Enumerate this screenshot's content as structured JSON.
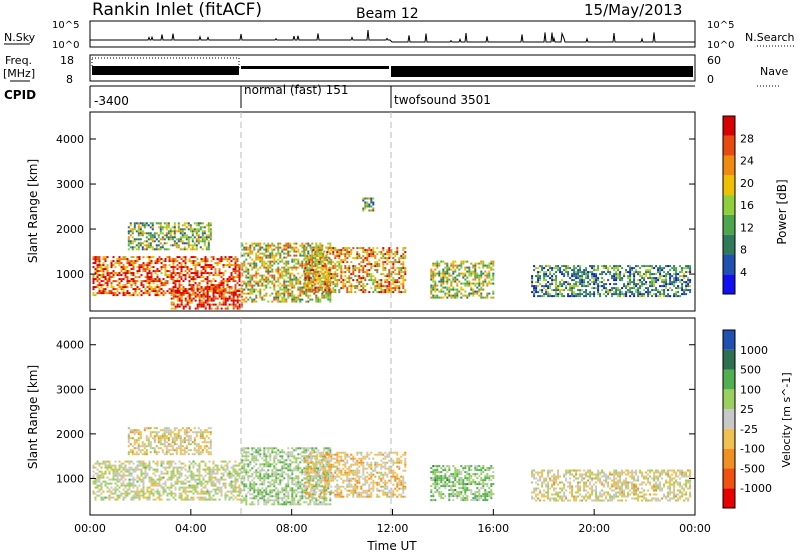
{
  "header": {
    "station": "Rankin Inlet (fitACF)",
    "beam": "Beam 12",
    "date": "15/May/2013"
  },
  "noise_panel": {
    "left_label": "N.Sky",
    "left_ticks": [
      "10^5",
      "10^0"
    ],
    "right_label": "N.Search",
    "right_ticks": [
      "10^5",
      "10^0"
    ]
  },
  "freq_panel": {
    "left_label_1": "Freq.",
    "left_label_2": "[MHz]",
    "left_ticks": [
      "18",
      "8"
    ],
    "right_label": "Nave",
    "right_ticks": [
      "60",
      "0"
    ]
  },
  "cpid_panel": {
    "label": "CPID",
    "segments": [
      {
        "start_hr": 0,
        "text": "-3400"
      },
      {
        "start_hr": 6,
        "text": "normal (fast) 151"
      },
      {
        "start_hr": 12,
        "text": "twofsound 3501"
      }
    ]
  },
  "colors": {
    "power": [
      "#1010f0",
      "#2050b0",
      "#2e7a5a",
      "#4ca64c",
      "#8ecf3a",
      "#f0c000",
      "#f08a10",
      "#e84a10",
      "#d80000"
    ],
    "velocity": [
      "#e80000",
      "#f05010",
      "#f09020",
      "#f0c050",
      "#c8c8c8",
      "#9ad060",
      "#50b050",
      "#2e7050",
      "#2050b0"
    ]
  },
  "chart_data": [
    {
      "type": "heatmap",
      "title": "",
      "xlabel": "",
      "ylabel": "Slant Range [km]",
      "xlim": [
        0,
        24
      ],
      "ylim": [
        180,
        4600
      ],
      "yticks": [
        1000,
        2000,
        3000,
        4000
      ],
      "colorbar": {
        "label": "Power [dB]",
        "ticks": [
          "4",
          "8",
          "12",
          "16",
          "20",
          "24",
          "28"
        ],
        "range": [
          0,
          32
        ]
      },
      "vertical_markers_hr": [
        6,
        12
      ],
      "regions": [
        {
          "t0": 0.1,
          "t1": 5.9,
          "r0": 520,
          "r1": 1400,
          "value": 26
        },
        {
          "t0": 1.5,
          "t1": 4.8,
          "r0": 1550,
          "r1": 2150,
          "value": 14
        },
        {
          "t0": 3.2,
          "t1": 6.0,
          "r0": 250,
          "r1": 700,
          "value": 29
        },
        {
          "t0": 6.0,
          "t1": 9.5,
          "r0": 400,
          "r1": 1700,
          "value": 18
        },
        {
          "t0": 8.5,
          "t1": 12.5,
          "r0": 600,
          "r1": 1600,
          "value": 22
        },
        {
          "t0": 10.8,
          "t1": 11.2,
          "r0": 2400,
          "r1": 2700,
          "value": 14
        },
        {
          "t0": 13.5,
          "t1": 16.0,
          "r0": 500,
          "r1": 1300,
          "value": 16
        },
        {
          "t0": 17.5,
          "t1": 23.8,
          "r0": 500,
          "r1": 1200,
          "value": 10
        }
      ]
    },
    {
      "type": "heatmap",
      "title": "",
      "xlabel": "Time UT",
      "ylabel": "Slant Range [km]",
      "xlim": [
        0,
        24
      ],
      "ylim": [
        180,
        4600
      ],
      "xticks": [
        "00:00",
        "04:00",
        "08:00",
        "12:00",
        "16:00",
        "20:00",
        "00:00"
      ],
      "yticks": [
        1000,
        2000,
        3000,
        4000
      ],
      "colorbar": {
        "label": "Velocity [m s^-1]",
        "ticks": [
          "1000",
          "500",
          "100",
          "25",
          "-25",
          "-100",
          "-500",
          "-1000"
        ],
        "range": [
          -1500,
          1500
        ]
      },
      "vertical_markers_hr": [
        6,
        12
      ],
      "regions": [
        {
          "t0": 0.1,
          "t1": 5.9,
          "r0": 520,
          "r1": 1400,
          "value": 60
        },
        {
          "t0": 1.5,
          "t1": 4.8,
          "r0": 1550,
          "r1": 2150,
          "value": -150
        },
        {
          "t0": 6.0,
          "t1": 9.5,
          "r0": 400,
          "r1": 1700,
          "value": 300
        },
        {
          "t0": 8.5,
          "t1": 12.5,
          "r0": 600,
          "r1": 1600,
          "value": -200
        },
        {
          "t0": 13.5,
          "t1": 16.0,
          "r0": 500,
          "r1": 1300,
          "value": 400
        },
        {
          "t0": 17.5,
          "t1": 23.8,
          "r0": 500,
          "r1": 1200,
          "value": -100
        }
      ]
    }
  ]
}
